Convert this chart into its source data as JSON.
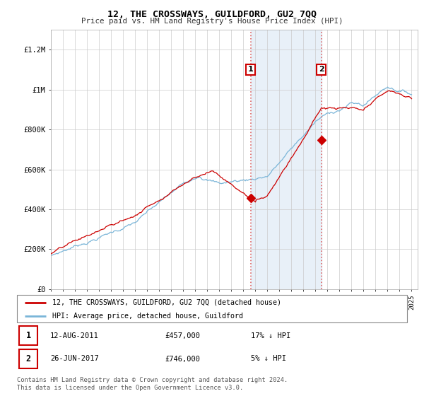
{
  "title": "12, THE CROSSWAYS, GUILDFORD, GU2 7QQ",
  "subtitle": "Price paid vs. HM Land Registry's House Price Index (HPI)",
  "ylabel_ticks": [
    "£0",
    "£200K",
    "£400K",
    "£600K",
    "£800K",
    "£1M",
    "£1.2M"
  ],
  "ytick_values": [
    0,
    200000,
    400000,
    600000,
    800000,
    1000000,
    1200000
  ],
  "ylim": [
    0,
    1300000
  ],
  "xlim_start": 1995.0,
  "xlim_end": 2025.5,
  "sale1_x": 2011.617,
  "sale1_y": 457000,
  "sale2_x": 2017.479,
  "sale2_y": 746000,
  "sale1_label": "12-AUG-2011",
  "sale1_price": "£457,000",
  "sale1_hpi": "17% ↓ HPI",
  "sale2_label": "26-JUN-2017",
  "sale2_price": "£746,000",
  "sale2_hpi": "5% ↓ HPI",
  "legend_line1": "12, THE CROSSWAYS, GUILDFORD, GU2 7QQ (detached house)",
  "legend_line2": "HPI: Average price, detached house, Guildford",
  "footer": "Contains HM Land Registry data © Crown copyright and database right 2024.\nThis data is licensed under the Open Government Licence v3.0.",
  "hpi_color": "#7ab5d8",
  "price_color": "#cc0000",
  "shade_color": "#e8f0f8",
  "grid_color": "#cccccc",
  "vline_color": "#dd6666"
}
